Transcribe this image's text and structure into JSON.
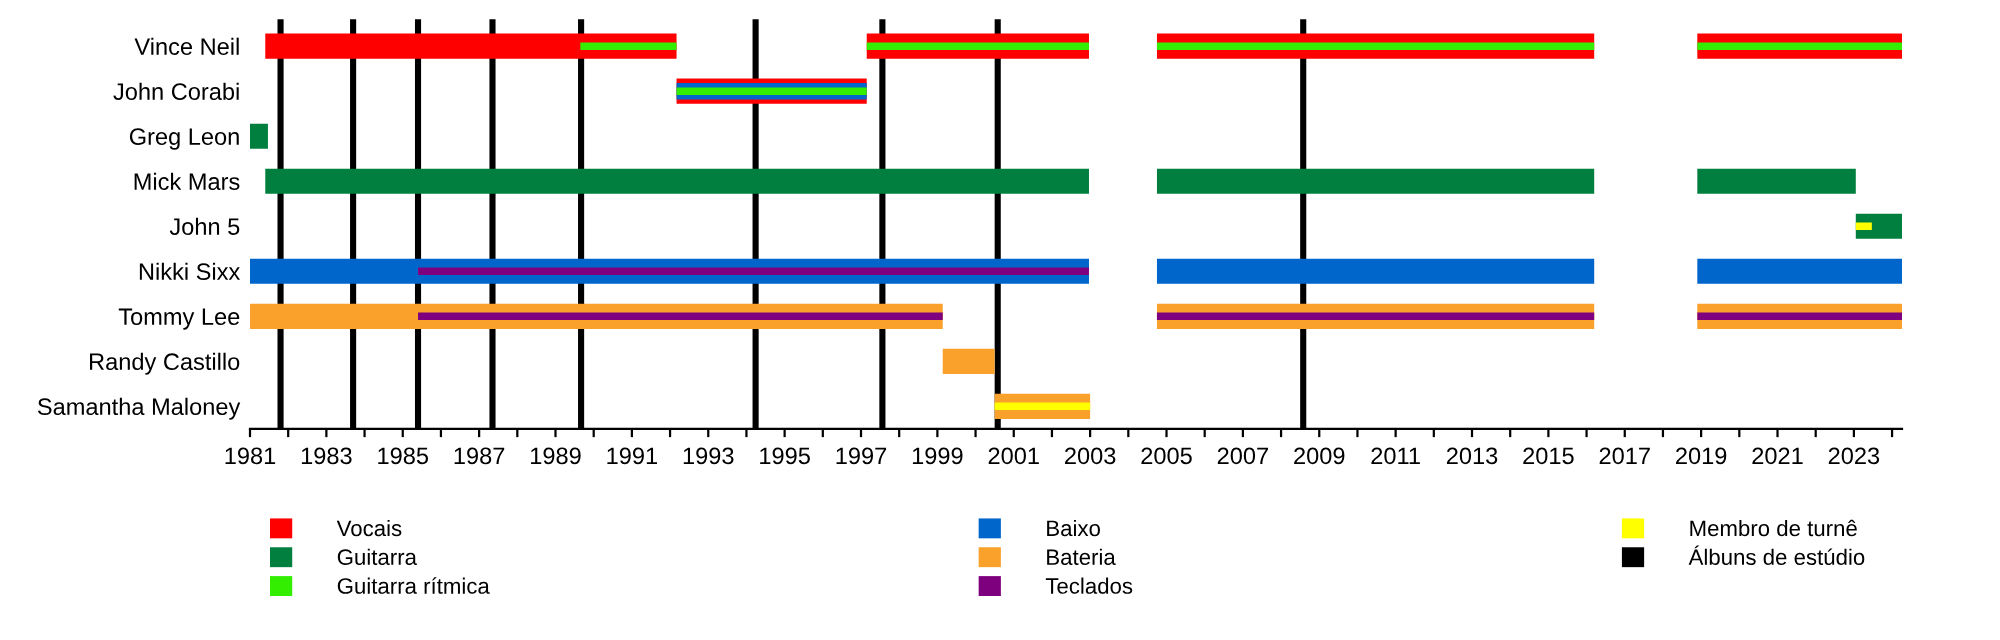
{
  "chart_data": {
    "type": "bar",
    "orientation": "horizontal",
    "categories": [
      "Vince Neil",
      "John Corabi",
      "Greg Leon",
      "Mick Mars",
      "John 5",
      "Nikki Sixx",
      "Tommy Lee",
      "Randy Castillo",
      "Samantha Maloney"
    ],
    "series": [
      {
        "name": "Vocais",
        "color": "#ff0000",
        "base": [
          1981.4,
          1992.17,
          null,
          null,
          null,
          null,
          null,
          null,
          null
        ],
        "values": [
          10.77,
          4.98,
          null,
          null,
          null,
          null,
          null,
          null,
          null
        ]
      },
      {
        "color": "#ff0000",
        "base": [
          1997.15,
          null,
          null,
          null,
          null,
          null,
          null,
          null,
          null
        ],
        "values": [
          5.82,
          null,
          null,
          null,
          null,
          null,
          null,
          null,
          null
        ]
      },
      {
        "color": "#ff0000",
        "base": [
          2004.75,
          null,
          null,
          null,
          null,
          null,
          null,
          null,
          null
        ],
        "values": [
          11.45,
          null,
          null,
          null,
          null,
          null,
          null,
          null,
          null
        ]
      },
      {
        "color": "#ff0000",
        "base": [
          2018.9,
          null,
          null,
          null,
          null,
          null,
          null,
          null,
          null
        ],
        "values": [
          5.36,
          null,
          null,
          null,
          null,
          null,
          null,
          null,
          null
        ]
      },
      {
        "name": "Guitarra",
        "color": "#007f3f",
        "base": [
          null,
          null,
          1981,
          1981.4,
          2023.05,
          null,
          null,
          null,
          null
        ],
        "values": [
          null,
          null,
          0.47,
          21.57,
          1.21,
          null,
          null,
          null,
          null
        ]
      },
      {
        "color": "#007f3f",
        "base": [
          null,
          null,
          null,
          2004.75,
          null,
          null,
          null,
          null,
          null
        ],
        "values": [
          null,
          null,
          null,
          11.45,
          null,
          null,
          null,
          null,
          null
        ]
      },
      {
        "color": "#007f3f",
        "base": [
          null,
          null,
          null,
          2018.9,
          null,
          null,
          null,
          null,
          null
        ],
        "values": [
          null,
          null,
          null,
          4.15,
          null,
          null,
          null,
          null,
          null
        ]
      },
      {
        "name": "Guitarra rítmica",
        "color": "#33ee00",
        "base": [
          1989.65,
          null,
          null,
          null,
          null,
          null,
          null,
          null,
          null
        ],
        "values": [
          2.52,
          null,
          null,
          null,
          null,
          null,
          null,
          null,
          null
        ]
      },
      {
        "color": "#33ee00",
        "base": [
          1997.15,
          null,
          null,
          null,
          null,
          null,
          null,
          null,
          null
        ],
        "values": [
          5.82,
          null,
          null,
          null,
          null,
          null,
          null,
          null,
          null
        ]
      },
      {
        "color": "#33ee00",
        "base": [
          2004.75,
          null,
          null,
          null,
          null,
          null,
          null,
          null,
          null
        ],
        "values": [
          11.45,
          null,
          null,
          null,
          null,
          null,
          null,
          null,
          null
        ]
      },
      {
        "color": "#33ee00",
        "base": [
          2018.9,
          null,
          null,
          null,
          null,
          null,
          null,
          null,
          null
        ],
        "values": [
          5.36,
          null,
          null,
          null,
          null,
          null,
          null,
          null,
          null
        ]
      },
      {
        "name": "Baixo",
        "color": "#0066cc",
        "base": [
          null,
          1992.17,
          null,
          null,
          null,
          1981,
          null,
          null,
          null
        ],
        "values": [
          null,
          4.98,
          null,
          null,
          null,
          21.97,
          null,
          null,
          null
        ]
      },
      {
        "color": "#0066cc",
        "base": [
          null,
          null,
          null,
          null,
          null,
          2004.75,
          null,
          null,
          null
        ],
        "values": [
          null,
          null,
          null,
          null,
          null,
          11.45,
          null,
          null,
          null
        ]
      },
      {
        "color": "#0066cc",
        "base": [
          null,
          null,
          null,
          null,
          null,
          2018.9,
          null,
          null,
          null
        ],
        "values": [
          null,
          null,
          null,
          null,
          null,
          5.36,
          null,
          null,
          null
        ]
      },
      {
        "color": "#33ee00",
        "base": [
          null,
          1992.17,
          null,
          null,
          null,
          null,
          null,
          null,
          null
        ],
        "values": [
          null,
          4.98,
          null,
          null,
          null,
          null,
          null,
          null,
          null
        ]
      },
      {
        "name": "Bateria",
        "color": "#f9a12a",
        "base": [
          null,
          null,
          null,
          null,
          null,
          null,
          1981,
          1999.14,
          2000.5
        ],
        "values": [
          null,
          null,
          null,
          null,
          null,
          null,
          18.14,
          1.36,
          2.5
        ]
      },
      {
        "color": "#f9a12a",
        "base": [
          null,
          null,
          null,
          null,
          null,
          null,
          2004.75,
          null,
          null
        ],
        "values": [
          null,
          null,
          null,
          null,
          null,
          null,
          11.45,
          null,
          null
        ]
      },
      {
        "color": "#f9a12a",
        "base": [
          null,
          null,
          null,
          null,
          null,
          null,
          2018.9,
          null,
          null
        ],
        "values": [
          null,
          null,
          null,
          null,
          null,
          null,
          5.36,
          null,
          null
        ]
      },
      {
        "name": "Teclados",
        "color": "#7f007f",
        "base": [
          null,
          null,
          null,
          null,
          null,
          1985.4,
          1985.4,
          null,
          null
        ],
        "values": [
          null,
          null,
          null,
          null,
          null,
          17.57,
          13.74,
          null,
          null
        ]
      },
      {
        "color": "#7f007f",
        "base": [
          null,
          null,
          null,
          null,
          null,
          null,
          2004.75,
          null,
          null
        ],
        "values": [
          null,
          null,
          null,
          null,
          null,
          null,
          11.45,
          null,
          null
        ]
      },
      {
        "color": "#7f007f",
        "base": [
          null,
          null,
          null,
          null,
          null,
          null,
          2018.9,
          null,
          null
        ],
        "values": [
          null,
          null,
          null,
          null,
          null,
          null,
          5.36,
          null,
          null
        ]
      },
      {
        "name": "Membro de turnê",
        "color": "#ffff00",
        "base": [
          null,
          null,
          null,
          null,
          2023.05,
          null,
          null,
          null,
          2000.5
        ],
        "values": [
          null,
          null,
          null,
          null,
          0.42,
          null,
          null,
          null,
          2.5
        ]
      }
    ],
    "xlim": [
      1981,
      2024.26
    ],
    "xticks": [
      1981,
      {
        "value": 1982,
        "label": null
      },
      1983,
      {
        "value": 1984,
        "label": null
      },
      1985,
      {
        "value": 1986,
        "label": null
      },
      1987,
      {
        "value": 1988,
        "label": null
      },
      1989,
      {
        "value": 1990,
        "label": null
      },
      1991,
      {
        "value": 1992,
        "label": null
      },
      1993,
      {
        "value": 1994,
        "label": null
      },
      1995,
      {
        "value": 1996,
        "label": null
      },
      1997,
      {
        "value": 1998,
        "label": null
      },
      1999,
      {
        "value": 2000,
        "label": null
      },
      2001,
      {
        "value": 2002,
        "label": null
      },
      2003,
      {
        "value": 2004,
        "label": null
      },
      2005,
      {
        "value": 2006,
        "label": null
      },
      2007,
      {
        "value": 2008,
        "label": null
      },
      2009,
      {
        "value": 2010,
        "label": null
      },
      2011,
      {
        "value": 2012,
        "label": null
      },
      2013,
      {
        "value": 2014,
        "label": null
      },
      2015,
      {
        "value": 2016,
        "label": null
      },
      2017,
      {
        "value": 2018,
        "label": null
      },
      2019,
      {
        "value": 2020,
        "label": null
      },
      2021,
      {
        "value": 2022,
        "label": null
      },
      2023,
      {
        "value": 2024,
        "label": null
      }
    ],
    "ref_lines": [
      {
        "axis": "x",
        "value": 1981.8,
        "label": "Álbuns de estúdio",
        "color": "#000000"
      },
      {
        "axis": "x",
        "value": 1983.7,
        "color": "#000000"
      },
      {
        "axis": "x",
        "value": 1985.4,
        "color": "#000000"
      },
      {
        "axis": "x",
        "value": 1987.35,
        "color": "#000000"
      },
      {
        "axis": "x",
        "value": 1989.67,
        "color": "#000000"
      },
      {
        "axis": "x",
        "value": 1994.24,
        "color": "#000000"
      },
      {
        "axis": "x",
        "value": 1997.56,
        "color": "#000000"
      },
      {
        "axis": "x",
        "value": 2000.58,
        "color": "#000000"
      },
      {
        "axis": "x",
        "value": 2008.58,
        "color": "#000000"
      }
    ],
    "legend": "bottom"
  }
}
